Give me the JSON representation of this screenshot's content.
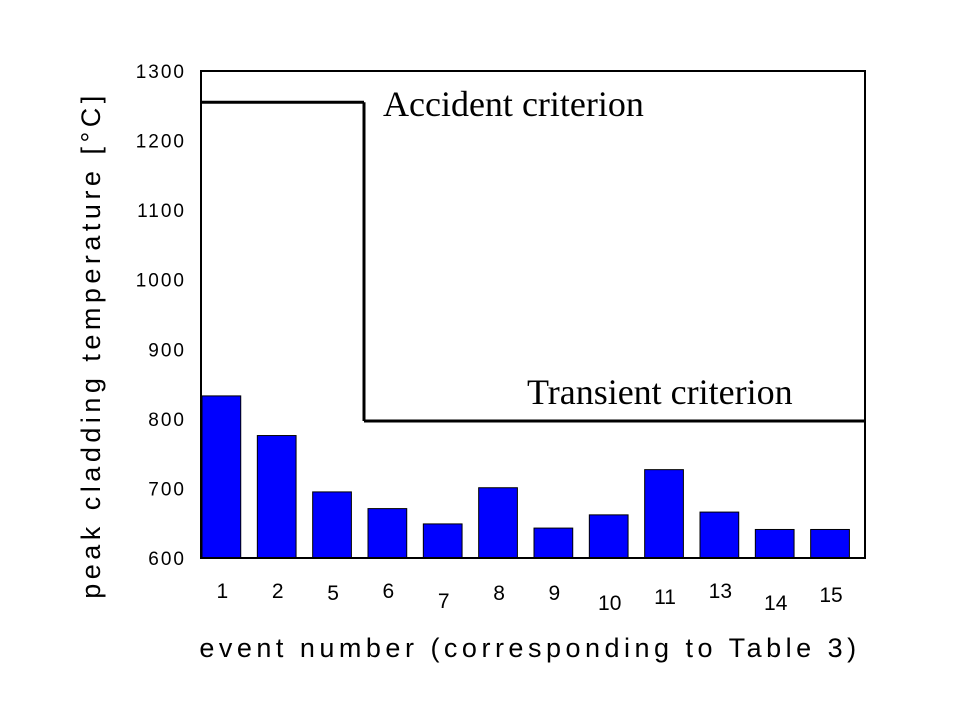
{
  "chart_data": {
    "type": "bar",
    "categories": [
      "1",
      "2",
      "5",
      "6",
      "7",
      "8",
      "9",
      "10",
      "11",
      "13",
      "14",
      "15"
    ],
    "values": [
      833,
      776,
      695,
      671,
      649,
      701,
      643,
      662,
      727,
      666,
      641,
      641
    ],
    "xlabel": "event number (corresponding to Table 3)",
    "ylabel": "peak cladding temperature [°C]",
    "ylim": [
      600,
      1300
    ],
    "yticks": [
      600,
      700,
      800,
      900,
      1000,
      1100,
      1200,
      1300
    ],
    "grid": false,
    "colors": {
      "bar": "#0000ff",
      "bar_stroke": "#000000",
      "criterion_line": "#000000"
    },
    "criteria": [
      {
        "label": "Accident criterion",
        "value": 1255,
        "from_category": "1",
        "to_category": "6"
      },
      {
        "label": "Transient criterion",
        "value": 797,
        "from_category": "6",
        "to_category": "15"
      }
    ]
  }
}
